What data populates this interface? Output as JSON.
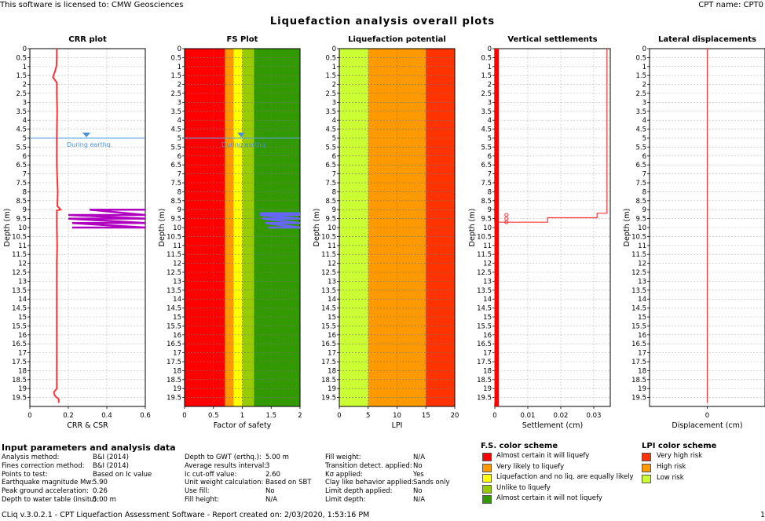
{
  "header": {
    "license": "This software is licensed to: CMW Geosciences",
    "cpt_name": "CPT name: CPT0"
  },
  "title": "Liquefaction analysis overall plots",
  "chart_data": [
    {
      "type": "line",
      "title": "CRR plot",
      "xlabel": "CRR & CSR",
      "ylabel": "Depth (m)",
      "xlim": [
        0,
        0.6
      ],
      "ylim": [
        0,
        20
      ],
      "xticks": [
        "0",
        "0.2",
        "0.4",
        "0.6"
      ],
      "yticks": [
        "0",
        "0.5",
        "1",
        "1.5",
        "2",
        "2.5",
        "3",
        "3.5",
        "4",
        "4.5",
        "5",
        "5.5",
        "6",
        "6.5",
        "7",
        "7.5",
        "8",
        "8.5",
        "9",
        "9.5",
        "10",
        "10.5",
        "11",
        "11.5",
        "12",
        "12.5",
        "13",
        "13.5",
        "14",
        "14.5",
        "15",
        "15.5",
        "16",
        "16.5",
        "17",
        "17.5",
        "18",
        "18.5",
        "19",
        "19.5"
      ],
      "water_table": {
        "depth": 5.0,
        "label": "During earthq."
      },
      "series": [
        {
          "values_depth": [
            0.0,
            0.2,
            0.5,
            1.0,
            1.3,
            1.6,
            1.9,
            2.5,
            3.5,
            5.0,
            6.5,
            8.0,
            8.8,
            9.0,
            9.05,
            9.2,
            10.0,
            11.0,
            12.0,
            14.0,
            16.0,
            18.0,
            19.0,
            19.2,
            19.4,
            19.6,
            19.8
          ],
          "values_x": [
            0.14,
            0.14,
            0.14,
            0.138,
            0.13,
            0.12,
            0.14,
            0.14,
            0.142,
            0.14,
            0.14,
            0.145,
            0.143,
            0.16,
            0.14,
            0.14,
            0.14,
            0.142,
            0.14,
            0.14,
            0.14,
            0.14,
            0.14,
            0.125,
            0.13,
            0.15,
            0.15
          ]
        }
      ],
      "csr_series": [
        {
          "values_depth": [
            9.0,
            9.0,
            9.3,
            9.3,
            9.5,
            9.5,
            9.75,
            9.75,
            10.0,
            10.0
          ],
          "values_x": [
            0.6,
            0.31,
            0.6,
            0.2,
            0.6,
            0.2,
            0.6,
            0.22,
            0.6,
            0.22
          ]
        }
      ]
    },
    {
      "type": "area",
      "title": "FS Plot",
      "xlabel": "Factor of safety",
      "ylabel": "Depth (m)",
      "xlim": [
        0,
        2
      ],
      "ylim": [
        0,
        20
      ],
      "xticks": [
        "0",
        "0.5",
        "1",
        "1.5",
        "2"
      ],
      "yticks": [
        "0",
        "0.5",
        "1",
        "1.5",
        "2",
        "2.5",
        "3",
        "3.5",
        "4",
        "4.5",
        "5",
        "5.5",
        "6",
        "6.5",
        "7",
        "7.5",
        "8",
        "8.5",
        "9",
        "9.5",
        "10",
        "10.5",
        "11",
        "11.5",
        "12",
        "12.5",
        "13",
        "13.5",
        "14",
        "14.5",
        "15",
        "15.5",
        "16",
        "16.5",
        "17",
        "17.5",
        "18",
        "18.5",
        "19",
        "19.5"
      ],
      "bands": [
        {
          "from": 0,
          "to": 0.7,
          "color": "#ff0000"
        },
        {
          "from": 0.7,
          "to": 0.85,
          "color": "#ff9900"
        },
        {
          "from": 0.85,
          "to": 1.0,
          "color": "#ffff00"
        },
        {
          "from": 1.0,
          "to": 1.2,
          "color": "#99cc00"
        },
        {
          "from": 1.2,
          "to": 2.0,
          "color": "#339900"
        }
      ],
      "water_table": {
        "depth": 5.0,
        "label": "During earthq."
      },
      "fs_series": [
        {
          "values_depth": [
            9.2,
            9.2,
            9.3,
            9.3,
            9.5,
            9.5,
            9.75,
            9.75,
            10.0,
            10.0
          ],
          "values_x": [
            2.0,
            1.3,
            2.0,
            1.3,
            2.0,
            1.35,
            2.0,
            1.4,
            2.0,
            1.45
          ]
        }
      ]
    },
    {
      "type": "area",
      "title": "Liquefaction potential",
      "xlabel": "LPI",
      "ylabel": "Depth (m)",
      "xlim": [
        0,
        20
      ],
      "ylim": [
        0,
        20
      ],
      "xticks": [
        "0",
        "5",
        "10",
        "15",
        "20"
      ],
      "yticks": [
        "0",
        "0.5",
        "1",
        "1.5",
        "2",
        "2.5",
        "3",
        "3.5",
        "4",
        "4.5",
        "5",
        "5.5",
        "6",
        "6.5",
        "7",
        "7.5",
        "8",
        "8.5",
        "9",
        "9.5",
        "10",
        "10.5",
        "11",
        "11.5",
        "12",
        "12.5",
        "13",
        "13.5",
        "14",
        "14.5",
        "15",
        "15.5",
        "16",
        "16.5",
        "17",
        "17.5",
        "18",
        "18.5",
        "19",
        "19.5"
      ],
      "bands": [
        {
          "from": 0,
          "to": 5,
          "color": "#ccff33"
        },
        {
          "from": 5,
          "to": 15,
          "color": "#ff9900"
        },
        {
          "from": 15,
          "to": 20,
          "color": "#ff3300"
        }
      ]
    },
    {
      "type": "line",
      "title": "Vertical settlements",
      "xlabel": "Settlement (cm)",
      "ylabel": "Depth (m)",
      "xlim": [
        0,
        0.035
      ],
      "ylim": [
        0,
        20
      ],
      "xticks": [
        "0",
        "0.01",
        "0.02",
        "0.03"
      ],
      "xtick_values": [
        0,
        0.01,
        0.02,
        0.03
      ],
      "yticks": [
        "0",
        "0.5",
        "1",
        "1.5",
        "2",
        "2.5",
        "3",
        "3.5",
        "4",
        "4.5",
        "5",
        "5.5",
        "6",
        "6.5",
        "7",
        "7.5",
        "8",
        "8.5",
        "9",
        "9.5",
        "10",
        "10.5",
        "11",
        "11.5",
        "12",
        "12.5",
        "13",
        "13.5",
        "14",
        "14.5",
        "15",
        "15.5",
        "16",
        "16.5",
        "17",
        "17.5",
        "18",
        "18.5",
        "19",
        "19.5"
      ],
      "series": [
        {
          "values_depth": [
            0,
            9.2,
            9.2,
            9.45,
            9.45,
            9.7,
            9.7,
            9.75,
            9.75,
            19.8
          ],
          "values_x": [
            0.034,
            0.034,
            0.031,
            0.031,
            0.016,
            0.016,
            0.0,
            0.0,
            0.0,
            0.0
          ]
        }
      ],
      "points": [
        {
          "depth": 9.3,
          "x": 0.0035
        },
        {
          "depth": 9.5,
          "x": 0.0035
        },
        {
          "depth": 9.7,
          "x": 0.0035
        }
      ]
    },
    {
      "type": "line",
      "title": "Lateral displacements",
      "xlabel": "Displacement (cm)",
      "ylabel": "Depth (m)",
      "xlim": [
        -1,
        1
      ],
      "ylim": [
        0,
        20
      ],
      "xticks": [
        "0"
      ],
      "xtick_values": [
        0
      ],
      "yticks": [
        "0",
        "0.5",
        "1",
        "1.5",
        "2",
        "2.5",
        "3",
        "3.5",
        "4",
        "4.5",
        "5",
        "5.5",
        "6",
        "6.5",
        "7",
        "7.5",
        "8",
        "8.5",
        "9",
        "9.5",
        "10",
        "10.5",
        "11",
        "11.5",
        "12",
        "12.5",
        "13",
        "13.5",
        "14",
        "14.5",
        "15",
        "15.5",
        "16",
        "16.5",
        "17",
        "17.5",
        "18",
        "18.5",
        "19",
        "19.5"
      ],
      "series": [
        {
          "values_depth": [
            0,
            19.8
          ],
          "values_x": [
            0,
            0
          ]
        }
      ]
    }
  ],
  "input_params": {
    "title": "Input parameters and analysis data",
    "col1": [
      {
        "label": "Analysis method:",
        "value": "B&I (2014)"
      },
      {
        "label": "Fines correction method:",
        "value": "B&I (2014)"
      },
      {
        "label": "Points to test:",
        "value": "Based on Ic value"
      },
      {
        "label": "Earthquake magnitude Mw:",
        "value": "5.90"
      },
      {
        "label": "Peak ground acceleration:",
        "value": "0.26"
      },
      {
        "label": "Depth to water table (insitu):",
        "value": "5.00 m"
      }
    ],
    "col2": [
      {
        "label": "Depth to GWT (erthq.):",
        "value": "5.00 m"
      },
      {
        "label": "Average results interval:",
        "value": "3"
      },
      {
        "label": "Ic cut-off value:",
        "value": "2.60"
      },
      {
        "label": "Unit weight calculation:",
        "value": "Based on SBT"
      },
      {
        "label": "Use fill:",
        "value": "No"
      },
      {
        "label": "Fill height:",
        "value": "N/A"
      }
    ],
    "col3": [
      {
        "label": "Fill weight:",
        "value": "N/A"
      },
      {
        "label": "Transition detect. applied:",
        "value": "No"
      },
      {
        "label": "Kσ applied:",
        "value": "Yes"
      },
      {
        "label": "Clay like behavior applied:",
        "value": "Sands only"
      },
      {
        "label": "Limit depth applied:",
        "value": "No"
      },
      {
        "label": "Limit depth:",
        "value": "N/A"
      }
    ]
  },
  "fs_scheme": {
    "title": "F.S. color scheme",
    "items": [
      {
        "label": "Almost certain it will liquefy",
        "color": "#ff0000"
      },
      {
        "label": "Very likely to liquefy",
        "color": "#ff9900"
      },
      {
        "label": "Liquefaction and no liq. are equally likely",
        "color": "#ffff00"
      },
      {
        "label": "Unlike to liquefy",
        "color": "#99cc00"
      },
      {
        "label": "Almost certain it will not liquefy",
        "color": "#339900"
      }
    ]
  },
  "lpi_scheme": {
    "title": "LPI color scheme",
    "items": [
      {
        "label": "Very high risk",
        "color": "#ff3300"
      },
      {
        "label": "High risk",
        "color": "#ff9900"
      },
      {
        "label": "Low risk",
        "color": "#ccff33"
      }
    ]
  },
  "footer": {
    "text": "CLiq v.3.0.2.1 - CPT Liquefaction Assessment Software - Report created on: 2/03/2020, 1:53:16 PM",
    "page": "1"
  }
}
